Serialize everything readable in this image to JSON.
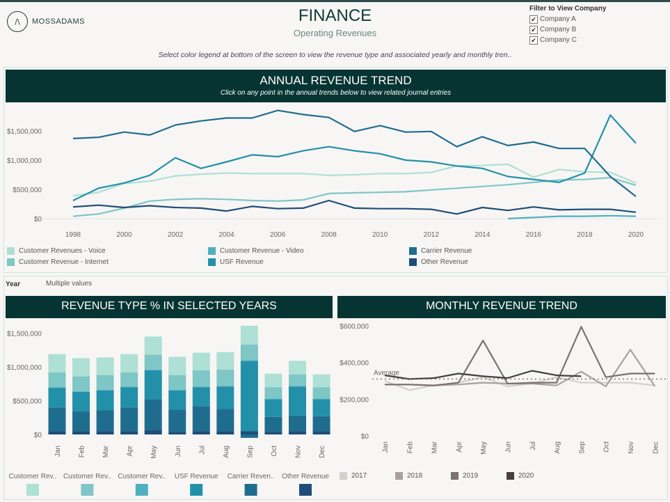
{
  "header": {
    "logo_text": "MOSSADAMS",
    "title": "FINANCE",
    "subtitle": "Operating Revenues",
    "instruction": "Select color legend at bottom of the screen to view the revenue type and associated yearly and monthly tren.."
  },
  "filter": {
    "title": "Filter to View Company",
    "options": [
      {
        "label": "Company A",
        "checked": true
      },
      {
        "label": "Company B",
        "checked": true
      },
      {
        "label": "Company C",
        "checked": true
      }
    ]
  },
  "year_filter": {
    "label": "Year",
    "value": "Multiple values"
  },
  "colors": {
    "voice": "#aee0d5",
    "internet": "#7fc6c6",
    "video": "#4fb0bf",
    "usf": "#2390a9",
    "carrier": "#1f6d8e",
    "other": "#1f4d78",
    "header_bg": "#063432"
  },
  "chart_data": [
    {
      "type": "line",
      "title": "ANNUAL REVENUE TREND",
      "subtitle": "Click on any point in the annual trends below to view related journal entries",
      "x": [
        1998,
        1999,
        2000,
        2001,
        2002,
        2003,
        2004,
        2005,
        2006,
        2007,
        2008,
        2009,
        2010,
        2011,
        2012,
        2013,
        2014,
        2015,
        2016,
        2017,
        2018,
        2019,
        2020
      ],
      "x_ticks": [
        "1998",
        "2000",
        "2002",
        "2004",
        "2006",
        "2008",
        "2010",
        "2012",
        "2014",
        "2016",
        "2018",
        "2020"
      ],
      "y_ticks": [
        "$0",
        "$500,000",
        "$1,000,000",
        "$1,500,000"
      ],
      "ylim": [
        0,
        1900000
      ],
      "legend": "bottom",
      "series": [
        {
          "name": "Customer Revenues - Voice",
          "color": "#aee0d5",
          "values": [
            390000,
            450000,
            600000,
            640000,
            730000,
            760000,
            780000,
            770000,
            770000,
            770000,
            740000,
            750000,
            770000,
            770000,
            790000,
            900000,
            910000,
            930000,
            710000,
            840000,
            800000,
            790000,
            610000
          ]
        },
        {
          "name": "Customer Revenue - Internet",
          "color": "#7fc6c6",
          "values": [
            40000,
            80000,
            180000,
            300000,
            330000,
            340000,
            330000,
            310000,
            300000,
            320000,
            430000,
            440000,
            450000,
            460000,
            490000,
            520000,
            550000,
            580000,
            620000,
            660000,
            670000,
            700000,
            570000
          ]
        },
        {
          "name": "Customer Revenue - Video",
          "color": "#4fb0bf",
          "values": [
            null,
            null,
            null,
            null,
            null,
            null,
            null,
            null,
            null,
            null,
            null,
            null,
            null,
            null,
            null,
            null,
            null,
            0,
            20000,
            40000,
            40000,
            50000,
            40000
          ]
        },
        {
          "name": "USF Revenue",
          "color": "#2390a9",
          "values": [
            310000,
            520000,
            610000,
            740000,
            1040000,
            860000,
            970000,
            1090000,
            1060000,
            1160000,
            1230000,
            1160000,
            1110000,
            1000000,
            970000,
            900000,
            860000,
            720000,
            670000,
            620000,
            780000,
            1770000,
            1290000
          ]
        },
        {
          "name": "Carrier Revenue",
          "color": "#1f6d8e",
          "values": [
            1370000,
            1390000,
            1480000,
            1430000,
            1600000,
            1670000,
            1720000,
            1720000,
            1850000,
            1780000,
            1730000,
            1490000,
            1590000,
            1480000,
            1490000,
            1230000,
            1400000,
            1250000,
            1310000,
            1200000,
            1200000,
            720000,
            380000
          ]
        },
        {
          "name": "Other Revenue",
          "color": "#1f4d78",
          "values": [
            200000,
            230000,
            190000,
            220000,
            190000,
            180000,
            130000,
            210000,
            170000,
            180000,
            310000,
            180000,
            170000,
            170000,
            160000,
            80000,
            190000,
            140000,
            200000,
            150000,
            160000,
            160000,
            110000
          ]
        }
      ]
    },
    {
      "type": "bar",
      "stacked": true,
      "title": "REVENUE TYPE % IN SELECTED YEARS",
      "categories": [
        "Jan",
        "Feb",
        "Mar",
        "Apr",
        "May",
        "Jun",
        "Jul",
        "Aug",
        "Sep",
        "Oct",
        "Nov",
        "Dec"
      ],
      "y_ticks": [
        "$0",
        "$500,000",
        "$1,000,000",
        "$1,500,000"
      ],
      "ylim": [
        -50000,
        1600000
      ],
      "legend": "bottom",
      "series": [
        {
          "name": "Other Revenue",
          "legend_label": "Other Revenue",
          "color": "#1f4d78",
          "values": [
            50000,
            50000,
            50000,
            50000,
            70000,
            40000,
            50000,
            50000,
            50000,
            40000,
            50000,
            50000
          ]
        },
        {
          "name": "Carrier Revenue",
          "legend_label": "Carrier Reven..",
          "color": "#1f6d8e",
          "values": [
            350000,
            290000,
            310000,
            350000,
            450000,
            330000,
            370000,
            330000,
            -50000,
            220000,
            230000,
            220000
          ]
        },
        {
          "name": "USF Revenue",
          "legend_label": "USF Revenue",
          "color": "#2390a9",
          "values": [
            290000,
            290000,
            290000,
            300000,
            430000,
            280000,
            280000,
            330000,
            1040000,
            260000,
            430000,
            250000
          ]
        },
        {
          "name": "Customer Revenue - Video",
          "legend_label": "Customer Rev..",
          "color": "#4fb0bf",
          "values": [
            10000,
            10000,
            10000,
            10000,
            10000,
            10000,
            10000,
            10000,
            10000,
            10000,
            10000,
            10000
          ]
        },
        {
          "name": "Customer Revenue - Internet",
          "legend_label": "Customer Rev..",
          "color": "#7fc6c6",
          "values": [
            220000,
            220000,
            220000,
            210000,
            220000,
            220000,
            240000,
            240000,
            230000,
            170000,
            170000,
            170000
          ]
        },
        {
          "name": "Customer Revenues - Voice",
          "legend_label": "Customer Rev..",
          "color": "#aee0d5",
          "values": [
            270000,
            270000,
            260000,
            270000,
            270000,
            270000,
            260000,
            260000,
            280000,
            200000,
            200000,
            190000
          ]
        }
      ]
    },
    {
      "type": "line",
      "title": "MONTHLY REVENUE TREND",
      "categories": [
        "Jan",
        "Feb",
        "Mar",
        "Apr",
        "May",
        "Jun",
        "Jul",
        "Aug",
        "Sep",
        "Oct",
        "Nov",
        "Dec"
      ],
      "y_ticks": [
        "$0",
        "$200,000",
        "$400,000",
        "$600,000"
      ],
      "ylim": [
        0,
        600000
      ],
      "legend": "bottom",
      "reference_line": {
        "label": "Average",
        "value": 310000
      },
      "series": [
        {
          "name": "2017",
          "color": "#d6cfcc",
          "values": [
            300000,
            250000,
            275000,
            290000,
            320000,
            270000,
            285000,
            320000,
            290000,
            290000,
            290000,
            275000
          ]
        },
        {
          "name": "2018",
          "color": "#a8a09d",
          "values": [
            280000,
            280000,
            275000,
            280000,
            290000,
            285000,
            285000,
            275000,
            350000,
            270000,
            470000,
            270000
          ]
        },
        {
          "name": "2019",
          "color": "#7a7170",
          "values": [
            280000,
            280000,
            275000,
            290000,
            520000,
            285000,
            290000,
            290000,
            595000,
            320000,
            340000,
            340000
          ]
        },
        {
          "name": "2020",
          "color": "#463e40",
          "values": [
            330000,
            310000,
            315000,
            340000,
            325000,
            315000,
            355000,
            330000,
            325000,
            null,
            null,
            null
          ]
        }
      ]
    }
  ]
}
